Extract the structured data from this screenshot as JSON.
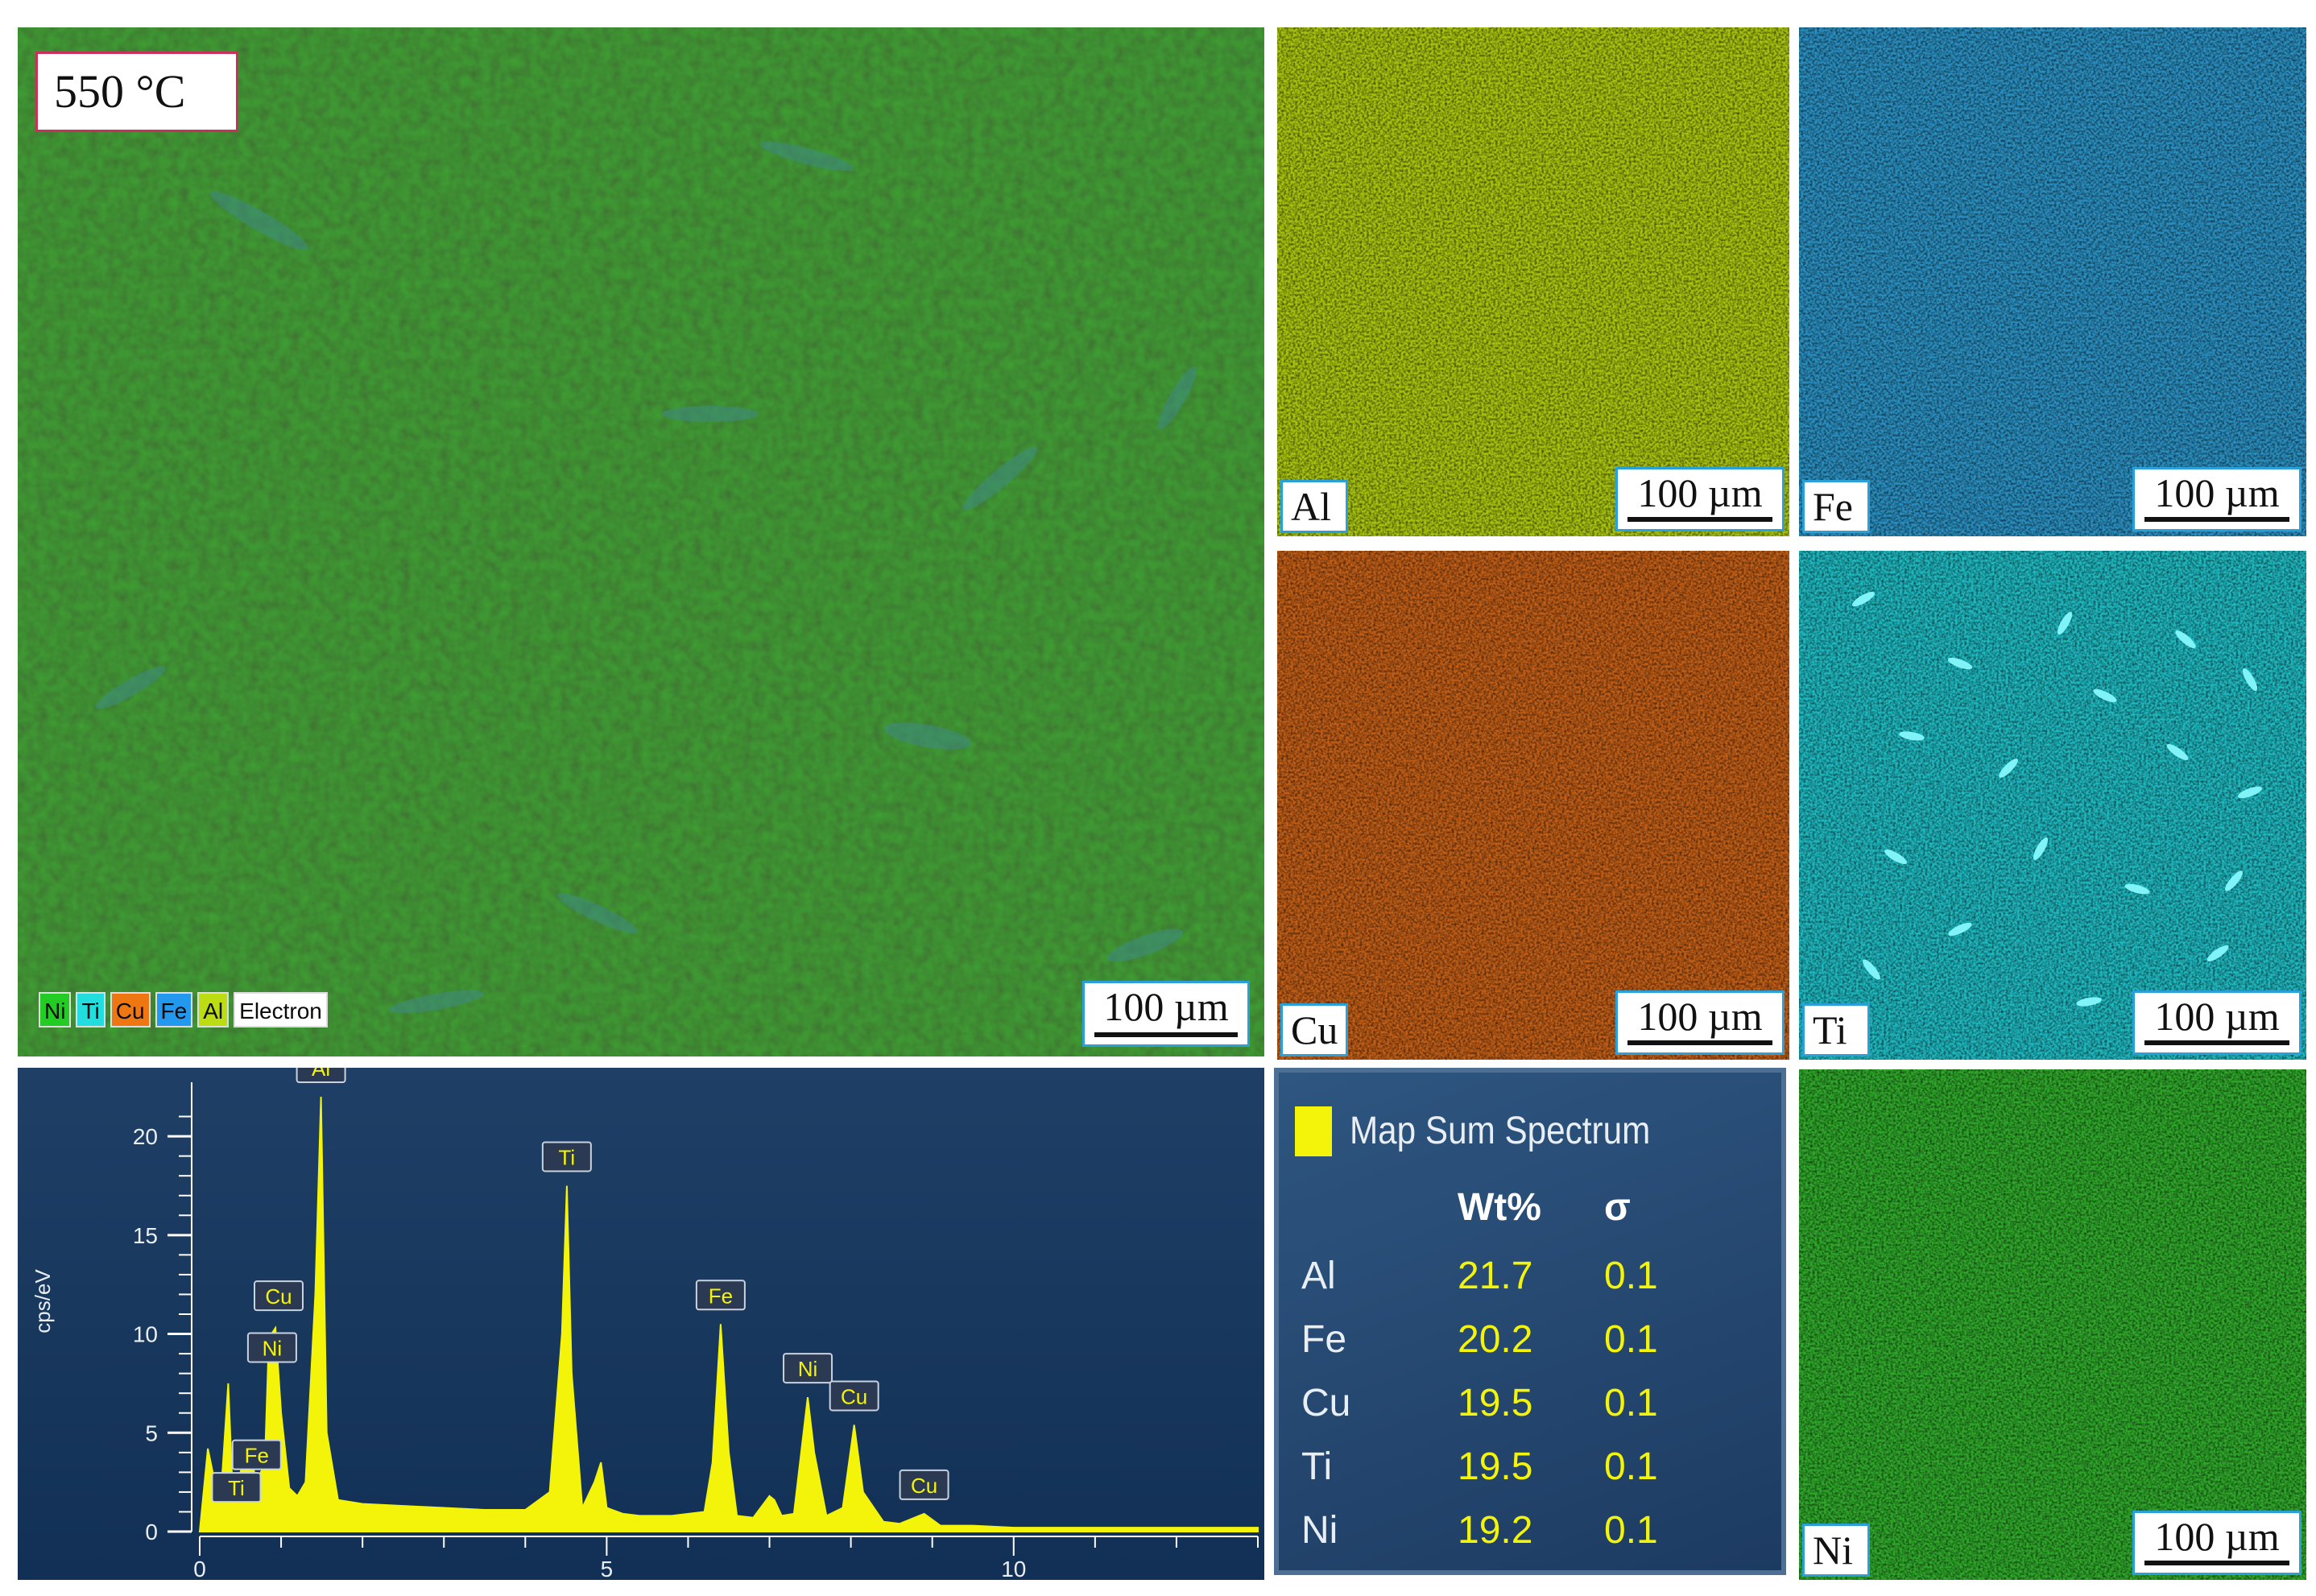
{
  "main_image": {
    "temperature_label": "550 °C",
    "legend": [
      {
        "label": "Ni",
        "color": "#22cc22"
      },
      {
        "label": "Ti",
        "color": "#22dddd"
      },
      {
        "label": "Cu",
        "color": "#ee7711"
      },
      {
        "label": "Fe",
        "color": "#2299ee"
      },
      {
        "label": "Al",
        "color": "#bbdd11"
      },
      {
        "label": "Electron",
        "color": "#ffffff"
      }
    ],
    "scale_bar": "100 µm"
  },
  "element_maps": [
    {
      "element": "Al",
      "scale_bar": "100 µm",
      "color": "#a9c40f"
    },
    {
      "element": "Fe",
      "scale_bar": "100 µm",
      "color": "#2a8fc0"
    },
    {
      "element": "Cu",
      "scale_bar": "100 µm",
      "color": "#c15e17"
    },
    {
      "element": "Ti",
      "scale_bar": "100 µm",
      "color": "#1fb9c0"
    },
    {
      "element": "Ni",
      "scale_bar": "100 µm",
      "color": "#2fa82a"
    }
  ],
  "summary_table": {
    "title": "Map Sum Spectrum",
    "columns": [
      "",
      "Wt%",
      "σ"
    ],
    "rows": [
      {
        "element": "Al",
        "wt": "21.7",
        "sigma": "0.1"
      },
      {
        "element": "Fe",
        "wt": "20.2",
        "sigma": "0.1"
      },
      {
        "element": "Cu",
        "wt": "19.5",
        "sigma": "0.1"
      },
      {
        "element": "Ti",
        "wt": "19.5",
        "sigma": "0.1"
      },
      {
        "element": "Ni",
        "wt": "19.2",
        "sigma": "0.1"
      }
    ]
  },
  "chart_data": {
    "type": "line",
    "title": "",
    "xlabel": "",
    "ylabel": "cps/eV",
    "xlim": [
      0,
      13
    ],
    "ylim": [
      0,
      22
    ],
    "x_ticks": [
      0,
      5,
      10
    ],
    "y_ticks": [
      0,
      5,
      10,
      15,
      20
    ],
    "series": [
      {
        "x": [
          0,
          0.1,
          0.25,
          0.35,
          0.4,
          0.5,
          0.6,
          0.7,
          0.8,
          0.85,
          0.93,
          1.0,
          1.1,
          1.2,
          1.3,
          1.42,
          1.49,
          1.56,
          1.7,
          2.0,
          2.5,
          3.0,
          3.5,
          4.0,
          4.3,
          4.45,
          4.51,
          4.57,
          4.7,
          4.85,
          4.93,
          5.0,
          5.2,
          5.4,
          5.8,
          6.2,
          6.3,
          6.4,
          6.5,
          6.6,
          6.8,
          7.0,
          7.06,
          7.15,
          7.3,
          7.47,
          7.55,
          7.7,
          7.9,
          8.04,
          8.15,
          8.4,
          8.6,
          8.9,
          9.1,
          9.5,
          10.0,
          11.0,
          12.0,
          13.0
        ],
        "y": [
          0,
          4.2,
          1.2,
          7.5,
          2.5,
          3.0,
          4.2,
          2.5,
          3.5,
          9.8,
          10.3,
          6.0,
          2.2,
          1.8,
          2.5,
          12.0,
          22.0,
          5.0,
          1.6,
          1.4,
          1.3,
          1.2,
          1.1,
          1.1,
          2.0,
          10.0,
          17.5,
          8.0,
          1.2,
          2.5,
          3.5,
          1.2,
          0.9,
          0.8,
          0.8,
          1.0,
          3.5,
          10.5,
          4.0,
          0.8,
          0.7,
          1.8,
          1.6,
          0.8,
          0.9,
          6.8,
          4.0,
          0.8,
          1.2,
          5.4,
          2.0,
          0.5,
          0.4,
          0.9,
          0.3,
          0.3,
          0.2,
          0.2,
          0.2,
          0.2
        ]
      }
    ],
    "peak_labels": [
      {
        "label": "Al",
        "x": 1.49,
        "y": 22.0
      },
      {
        "label": "Ti",
        "x": 4.51,
        "y": 17.5
      },
      {
        "label": "Cu",
        "x": 0.93,
        "y": 10.3
      },
      {
        "label": "Ni",
        "x": 0.85,
        "y": 9.8
      },
      {
        "label": "Fe",
        "x": 6.4,
        "y": 10.5
      },
      {
        "label": "Ni",
        "x": 7.47,
        "y": 6.8
      },
      {
        "label": "Cu",
        "x": 8.04,
        "y": 5.4
      },
      {
        "label": "Fe",
        "x": 0.7,
        "y": 2.5
      },
      {
        "label": "Ti",
        "x": 0.45,
        "y": 1.5
      },
      {
        "label": "Cu",
        "x": 8.9,
        "y": 0.9
      }
    ]
  }
}
